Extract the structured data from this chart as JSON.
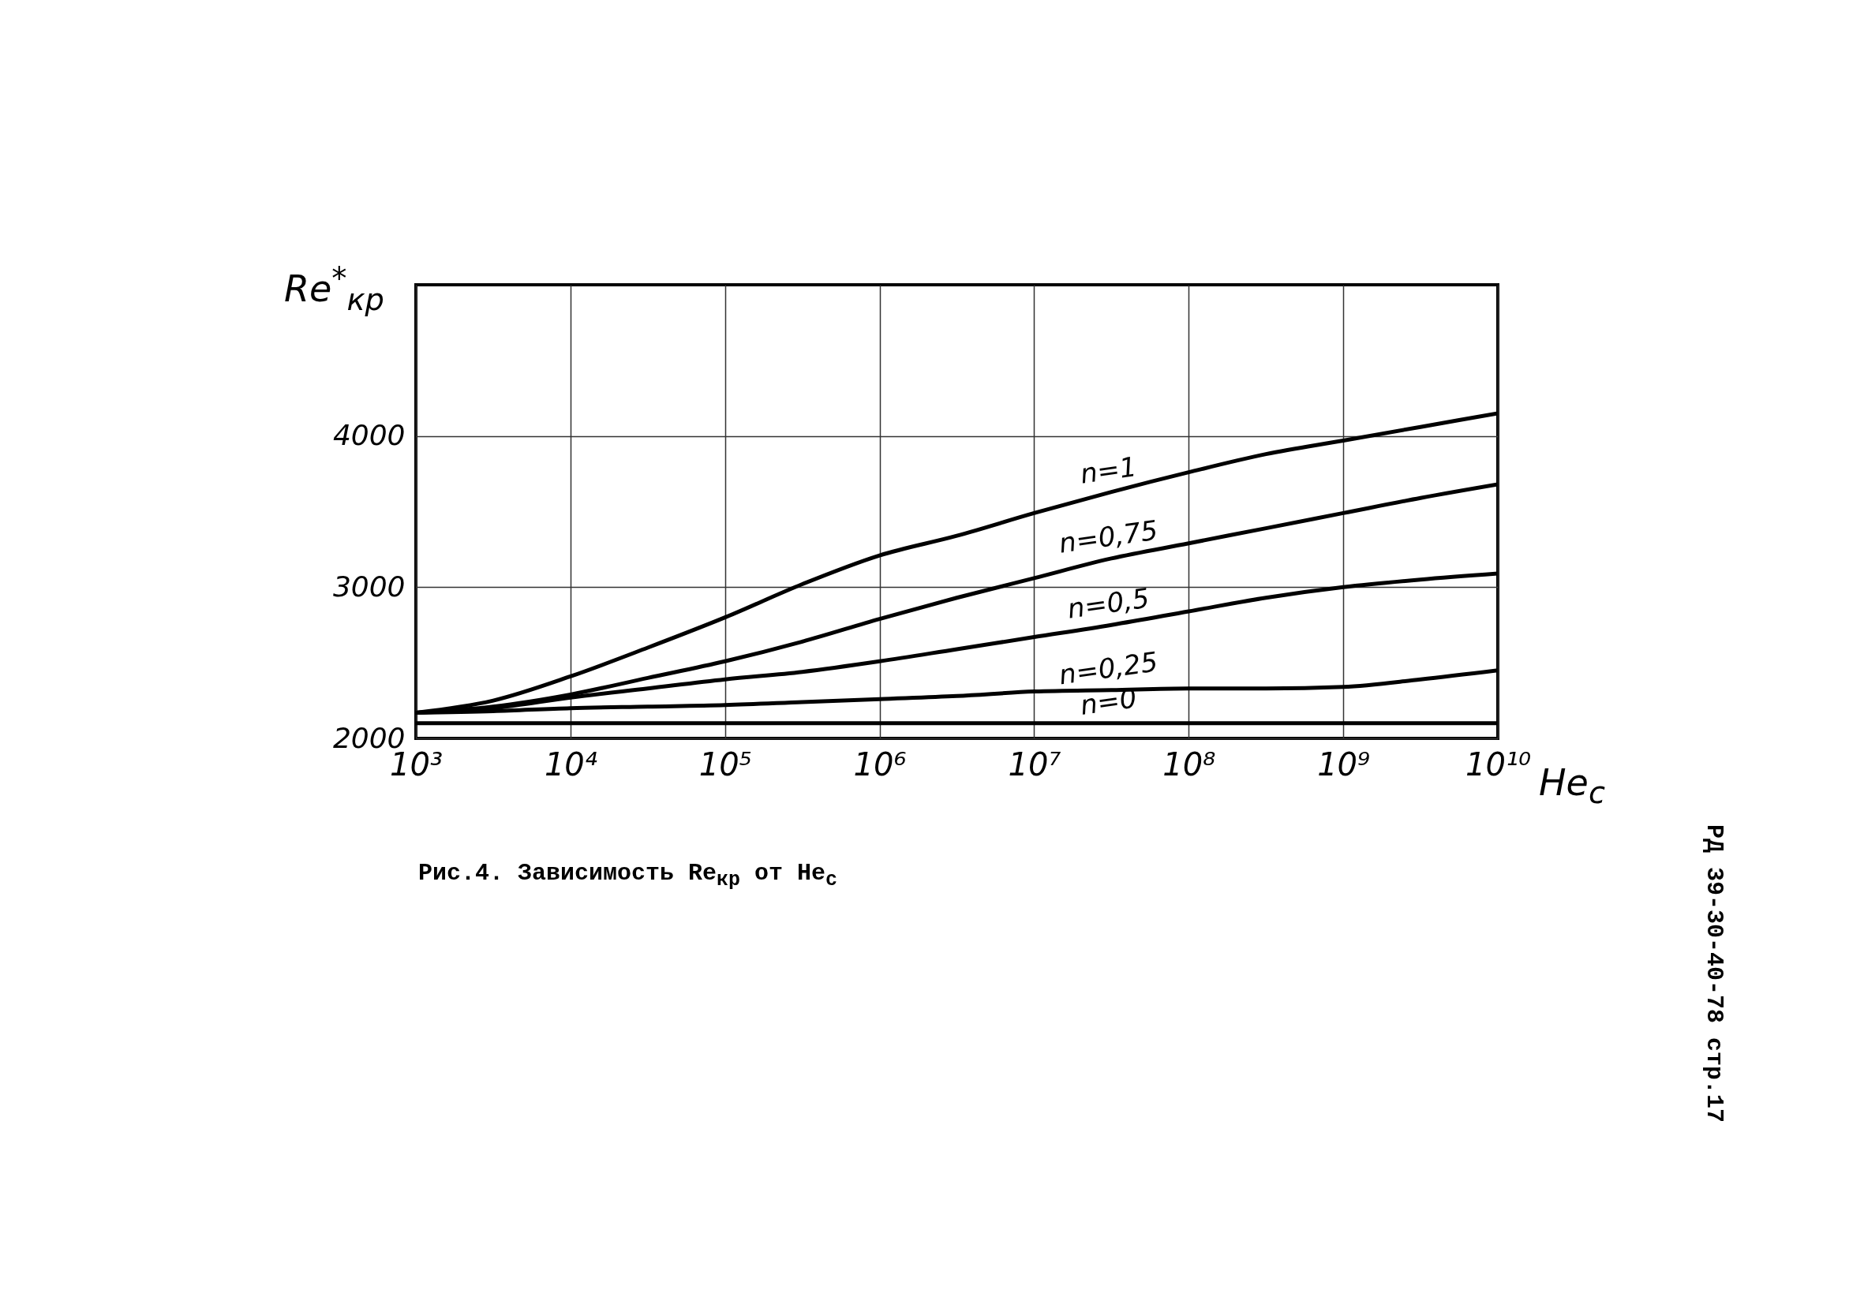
{
  "chart_data": {
    "type": "line",
    "ylabel": "Re$^{*}$$_{кр}$",
    "xlabel": "He$_{с}$",
    "x": [
      1000,
      3162,
      10000,
      31623,
      100000,
      316228,
      1000000,
      3162278,
      10000000,
      31622777,
      100000000,
      316227766,
      1000000000,
      3162277660,
      10000000000
    ],
    "series": [
      {
        "name": "n=1",
        "color": "#000000",
        "values": [
          2170,
          2250,
          2410,
          2600,
          2800,
          3020,
          3210,
          3340,
          3490,
          3630,
          3760,
          3880,
          3970,
          4060,
          4150
        ]
      },
      {
        "name": "n=0,75",
        "color": "#000000",
        "values": [
          2170,
          2210,
          2290,
          2400,
          2510,
          2640,
          2790,
          2930,
          3060,
          3190,
          3290,
          3390,
          3490,
          3590,
          3680
        ]
      },
      {
        "name": "n=0,5",
        "color": "#000000",
        "values": [
          2170,
          2200,
          2270,
          2330,
          2390,
          2440,
          2510,
          2590,
          2670,
          2750,
          2840,
          2930,
          3000,
          3050,
          3090
        ]
      },
      {
        "name": "n=0,25",
        "color": "#000000",
        "values": [
          2170,
          2180,
          2200,
          2210,
          2220,
          2240,
          2260,
          2280,
          2310,
          2320,
          2330,
          2330,
          2340,
          2390,
          2450
        ]
      },
      {
        "name": "n=0",
        "color": "#000000",
        "values": [
          2100,
          2100,
          2100,
          2100,
          2100,
          2100,
          2100,
          2100,
          2100,
          2100,
          2100,
          2100,
          2100,
          2100,
          2100
        ]
      }
    ],
    "log": "x",
    "xlim": [
      1000,
      10000000000
    ],
    "xticks": [
      {
        "value": 1000,
        "label": "10³"
      },
      {
        "value": 10000,
        "label": "10⁴"
      },
      {
        "value": 100000,
        "label": "10⁵"
      },
      {
        "value": 1000000,
        "label": "10⁶"
      },
      {
        "value": 10000000,
        "label": "10⁷"
      },
      {
        "value": 100000000,
        "label": "10⁸"
      },
      {
        "value": 1000000000,
        "label": "10⁹"
      },
      {
        "value": 10000000000,
        "label": "10¹⁰"
      }
    ],
    "ylim": [
      2000,
      5000
    ],
    "yticks": [
      2000,
      3000,
      4000
    ],
    "grid": true,
    "legend": false,
    "marker": "none",
    "line_style": "solid",
    "annotations": [
      "Рис.4. Зависимость Re$_{кр}$ от He$_{с}$",
      "РД 39-30-40-78 стр.17"
    ]
  }
}
